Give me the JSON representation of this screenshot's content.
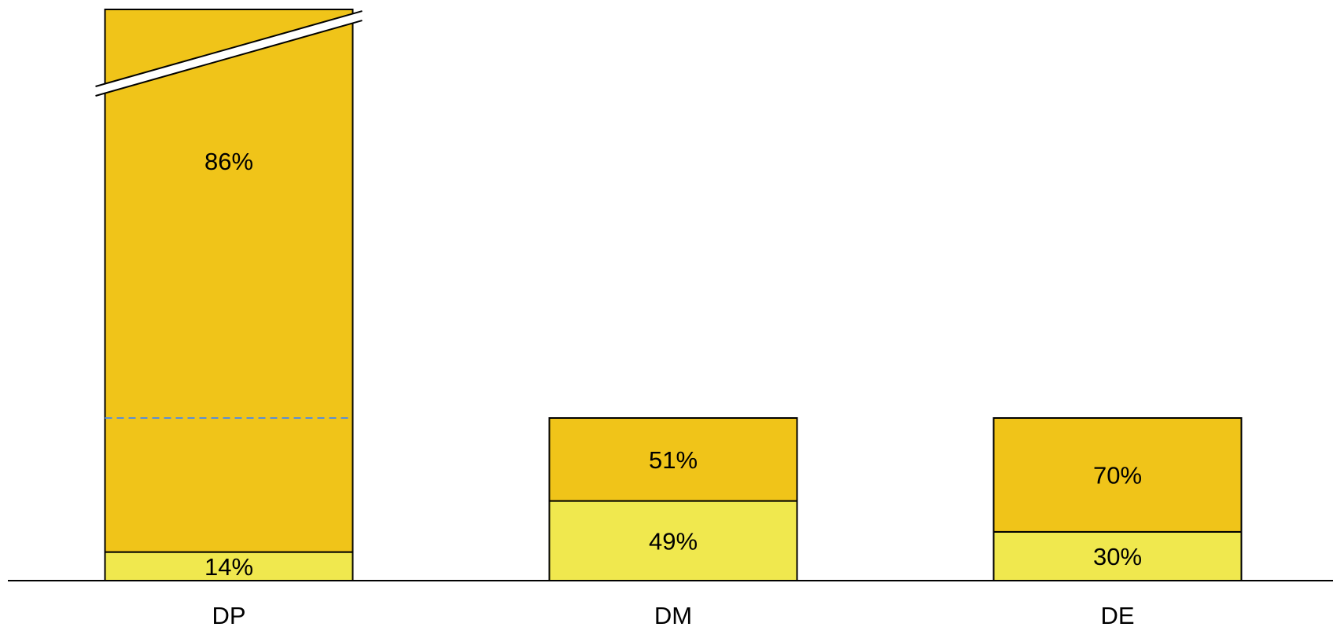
{
  "chart_data": {
    "type": "bar",
    "stacked": true,
    "truncated_categories": [
      "DP"
    ],
    "categories": [
      "DP",
      "DM",
      "DE"
    ],
    "series": [
      {
        "values": [
          14,
          49,
          30
        ],
        "labels": [
          "14%",
          "49%",
          "30%"
        ],
        "color": "#f0e84e"
      },
      {
        "values": [
          86,
          51,
          70
        ],
        "labels": [
          "86%",
          "51%",
          "70%"
        ],
        "color": "#f0c419"
      }
    ],
    "reference_line": {
      "category": "DP",
      "style": "dashed",
      "color": "#5b8ed6"
    },
    "grid": false,
    "legend": "none",
    "xlabel": "",
    "ylabel": "",
    "title": ""
  }
}
